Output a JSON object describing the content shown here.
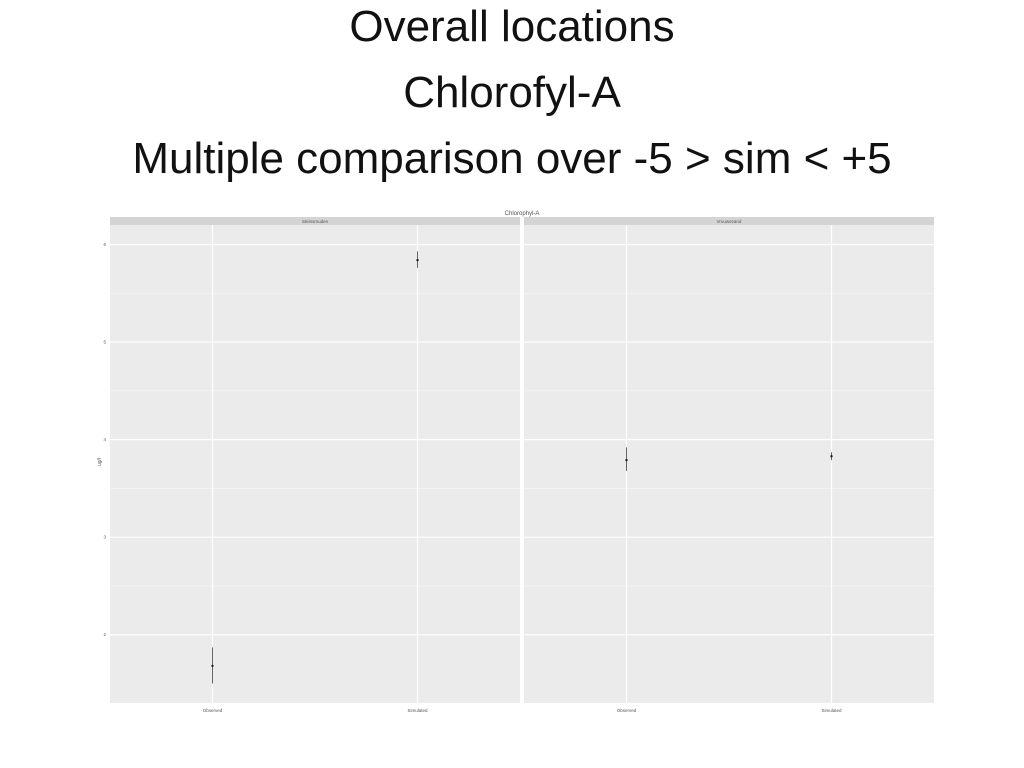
{
  "slide": {
    "title_lines": [
      "Overall locations",
      "Chlorofyl-A",
      "Multiple comparison over -5 > sim < +5"
    ]
  },
  "colors": {
    "panel_bg": "#EBEBEB",
    "grid": "#FFFFFF",
    "strip_bg": "#D4D4D4",
    "mark": "#222222"
  },
  "chart_data": {
    "type": "scatter",
    "title": "Chlorophyl-A",
    "xlabel": "",
    "ylabel": "ug/l",
    "ylim": [
      1.3,
      6.2
    ],
    "yticks": [
      2,
      3,
      4,
      5,
      6
    ],
    "ytick_labels": [
      "2",
      "3",
      "4",
      "5",
      "6"
    ],
    "grid": true,
    "legend": "none",
    "categories": [
      "Observed",
      "Simulated"
    ],
    "panels": [
      {
        "name": "Steinsmuden",
        "points": [
          {
            "x": "Observed",
            "y": 1.68,
            "low": 1.5,
            "high": 1.87
          },
          {
            "x": "Simulated",
            "y": 5.84,
            "low": 5.76,
            "high": 5.93
          }
        ]
      },
      {
        "name": "Vrouwezand",
        "points": [
          {
            "x": "Observed",
            "y": 3.79,
            "low": 3.68,
            "high": 3.92
          },
          {
            "x": "Simulated",
            "y": 3.83,
            "low": 3.79,
            "high": 3.87
          }
        ]
      }
    ]
  }
}
